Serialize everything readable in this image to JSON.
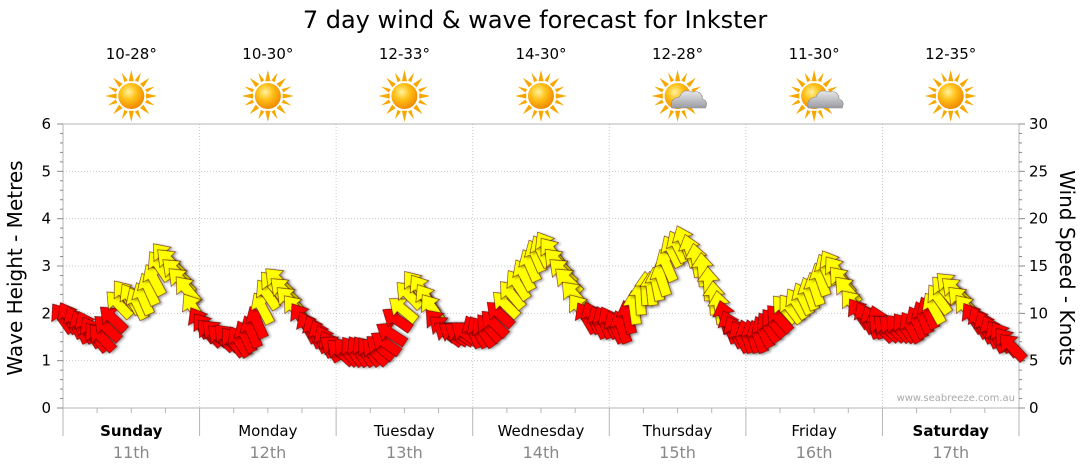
{
  "chart_data": {
    "type": "line",
    "title": "7 day wind & wave forecast for Inkster",
    "ylabel_left": "Wave Height - Metres",
    "ylabel_right": "Wind Speed - Knots",
    "ylim_left": [
      0,
      6
    ],
    "ylim_right": [
      0,
      30
    ],
    "yticks_left": [
      "0",
      "1",
      "2",
      "3",
      "4",
      "5",
      "6"
    ],
    "yticks_right": [
      "0",
      "5",
      "10",
      "15",
      "20",
      "25",
      "30"
    ],
    "grid": true,
    "watermark": "www.seabreeze.com.au",
    "days": [
      {
        "name": "Sunday",
        "date": "11th",
        "temp": "10-28°",
        "weather": "sun-icon",
        "bold": true
      },
      {
        "name": "Monday",
        "date": "12th",
        "temp": "10-30°",
        "weather": "sun-icon",
        "bold": false
      },
      {
        "name": "Tuesday",
        "date": "13th",
        "temp": "12-33°",
        "weather": "sun-icon",
        "bold": false
      },
      {
        "name": "Wednesday",
        "date": "14th",
        "temp": "14-30°",
        "weather": "sun-icon",
        "bold": false
      },
      {
        "name": "Thursday",
        "date": "15th",
        "temp": "12-28°",
        "weather": "sun-cloud-icon",
        "bold": false
      },
      {
        "name": "Friday",
        "date": "16th",
        "temp": "11-30°",
        "weather": "sun-cloud-icon",
        "bold": false
      },
      {
        "name": "Saturday",
        "date": "17th",
        "temp": "12-35°",
        "weather": "sun-icon",
        "bold": true
      }
    ],
    "wind_series": {
      "name": "Wind",
      "units": "knots",
      "day_offset_hours": [
        0,
        1,
        2,
        3,
        4,
        5,
        6,
        7,
        8,
        9,
        10,
        11,
        12,
        13,
        14,
        15,
        16,
        17,
        18,
        19,
        20,
        21,
        22,
        23
      ],
      "speed_by_day": [
        [
          9,
          9,
          8.5,
          8,
          8,
          7.5,
          7,
          7,
          8,
          9,
          10.5,
          11.5,
          11,
          10.5,
          11,
          12,
          13,
          14.5,
          15.5,
          15,
          14,
          13,
          12,
          10
        ],
        [
          8.5,
          8,
          7.5,
          7.5,
          7,
          7,
          6.5,
          6.5,
          7,
          7.5,
          8.5,
          10,
          11.5,
          12.5,
          13,
          12,
          11,
          10,
          9,
          8,
          7.5,
          7,
          6.5,
          6
        ],
        [
          6,
          5.5,
          5.5,
          5.5,
          5.5,
          5.5,
          5.5,
          5.5,
          6,
          6.5,
          7.5,
          9,
          10,
          11.5,
          12.5,
          12,
          11,
          10,
          8.5,
          8,
          7.5,
          7.5,
          7.5,
          7.5
        ],
        [
          7.5,
          7.5,
          7.5,
          8,
          8.5,
          9.5,
          10.5,
          11.5,
          12.5,
          13.5,
          14.5,
          15.5,
          16,
          16.5,
          16,
          15,
          14,
          13,
          11.5,
          10,
          9,
          9,
          8.5,
          8.5
        ],
        [
          8.5,
          8,
          8,
          9,
          10,
          11,
          12,
          12,
          12.5,
          13,
          14.5,
          16,
          16.5,
          17,
          16,
          15,
          14,
          12.5,
          11,
          10,
          9,
          8,
          7.5,
          7
        ],
        [
          7,
          7,
          7,
          7.5,
          8,
          8.5,
          9,
          10,
          10,
          10.5,
          11,
          11.5,
          12,
          13,
          14,
          14.5,
          14,
          13,
          12,
          10.5,
          9.5,
          9,
          8.5,
          8.5
        ],
        [
          8,
          8,
          8,
          8,
          8,
          8,
          8.5,
          9,
          9.5,
          10,
          11,
          12,
          12.5,
          12,
          11,
          10,
          9,
          8.5,
          8,
          7.5,
          7,
          7,
          6.5,
          6
        ]
      ],
      "color_scale": [
        {
          "min": 0,
          "max": 10,
          "color": "#ff0000",
          "label": "red"
        },
        {
          "min": 10,
          "max": 20,
          "color": "#ffff00",
          "label": "yellow"
        }
      ]
    },
    "wave_series": {
      "name": "Wave",
      "units": "metres",
      "values": []
    }
  }
}
